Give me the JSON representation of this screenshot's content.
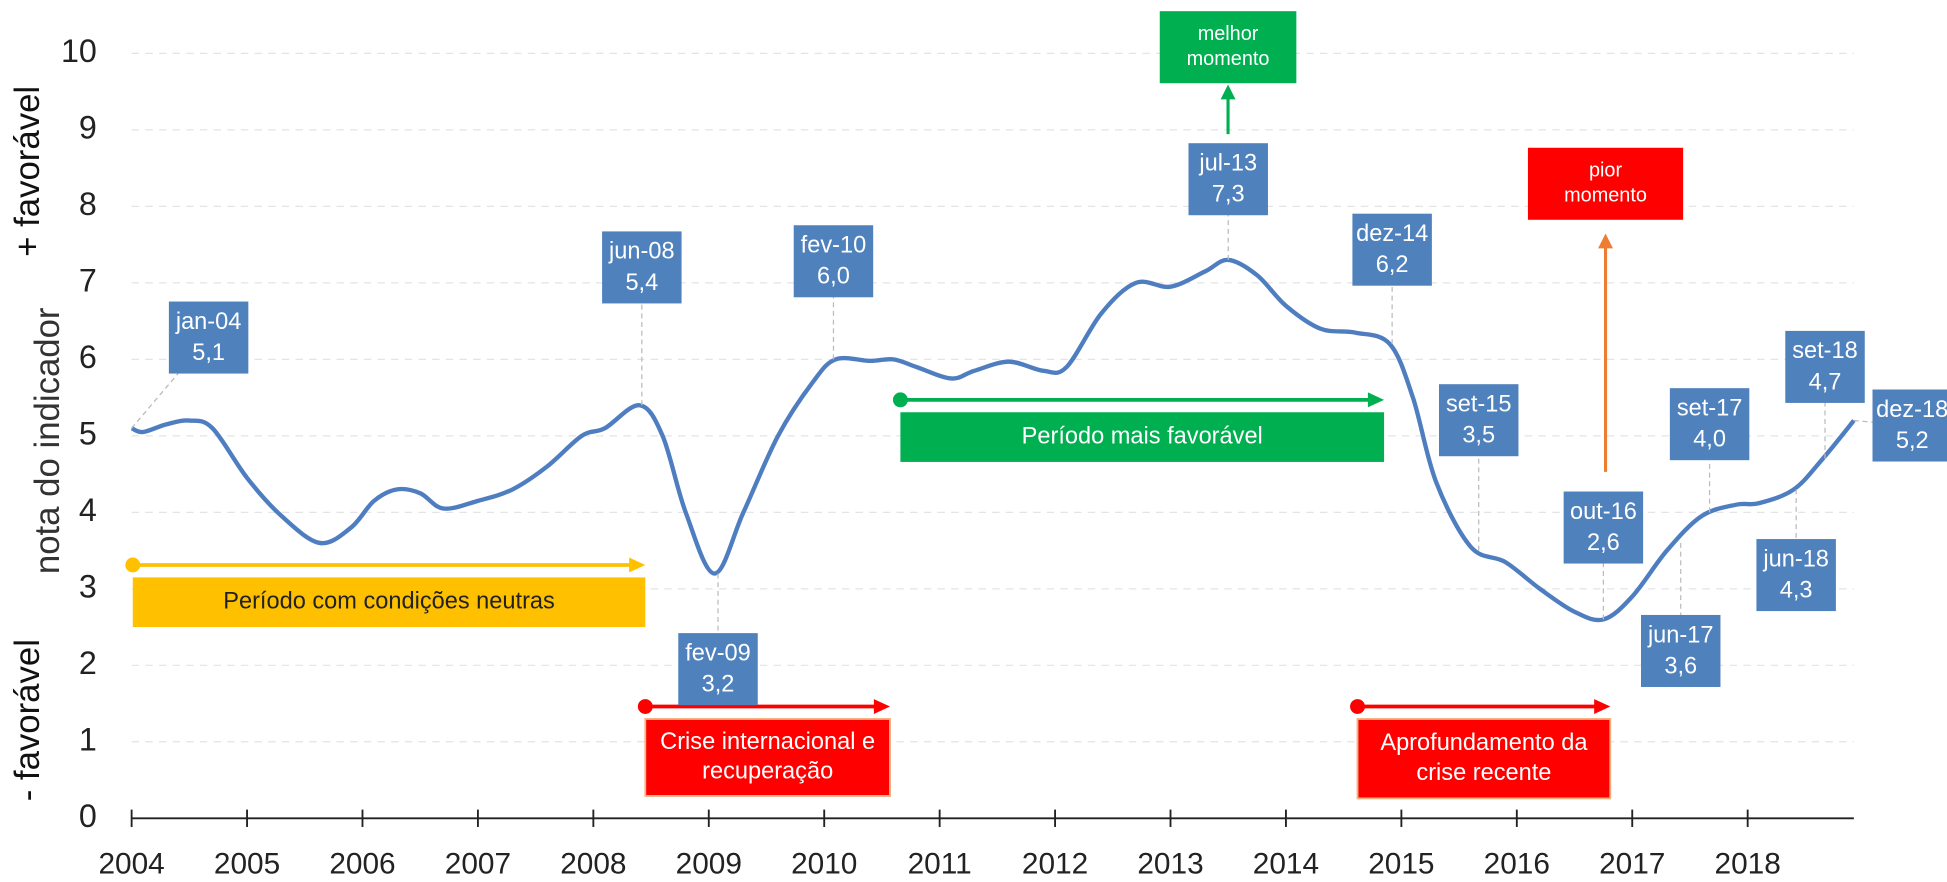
{
  "chart_data": {
    "type": "line",
    "ylabel": "nota do indicador",
    "top_label": "+ favorável",
    "bottom_label": "- favorável",
    "x": [
      2004.0,
      2004.1,
      2004.3,
      2004.5,
      2004.7,
      2005.0,
      2005.3,
      2005.63,
      2005.9,
      2006.1,
      2006.3,
      2006.5,
      2006.7,
      2007.0,
      2007.3,
      2007.6,
      2007.9,
      2008.1,
      2008.4,
      2008.6,
      2008.8,
      2009.05,
      2009.3,
      2009.6,
      2009.9,
      2010.1,
      2010.4,
      2010.6,
      2010.8,
      2011.1,
      2011.3,
      2011.6,
      2011.9,
      2012.1,
      2012.4,
      2012.7,
      2013.0,
      2013.3,
      2013.5,
      2013.75,
      2014.0,
      2014.3,
      2014.6,
      2014.9,
      2015.1,
      2015.3,
      2015.6,
      2015.9,
      2016.2,
      2016.5,
      2016.75,
      2017.0,
      2017.3,
      2017.6,
      2017.9,
      2018.1,
      2018.4,
      2018.65,
      2018.92
    ],
    "values": [
      5.1,
      5.05,
      5.15,
      5.2,
      5.1,
      4.45,
      3.95,
      3.6,
      3.8,
      4.15,
      4.3,
      4.25,
      4.05,
      4.15,
      4.3,
      4.6,
      5.0,
      5.1,
      5.4,
      5.0,
      4.0,
      3.2,
      4.0,
      5.0,
      5.7,
      6.0,
      5.98,
      6.0,
      5.9,
      5.75,
      5.85,
      5.97,
      5.85,
      5.9,
      6.6,
      7.0,
      6.95,
      7.15,
      7.3,
      7.1,
      6.7,
      6.4,
      6.35,
      6.2,
      5.5,
      4.4,
      3.55,
      3.35,
      3.0,
      2.7,
      2.6,
      2.9,
      3.5,
      3.95,
      4.1,
      4.12,
      4.3,
      4.7,
      5.2
    ],
    "color": "#4F7EC0",
    "xlim": [
      2004,
      2018.92
    ],
    "xticks": [
      2004,
      2005,
      2006,
      2007,
      2008,
      2009,
      2010,
      2011,
      2012,
      2013,
      2014,
      2015,
      2016,
      2017,
      2018
    ],
    "ylim": [
      0,
      10
    ],
    "yticks": [
      0,
      1,
      2,
      3,
      4,
      5,
      6,
      7,
      8,
      9,
      10
    ],
    "grid": true,
    "callouts": [
      {
        "date": "jan-04",
        "x": 2004.0,
        "value": 5.1,
        "value_label": "5,1"
      },
      {
        "date": "jun-08",
        "x": 2008.42,
        "value": 5.4,
        "value_label": "5,4"
      },
      {
        "date": "fev-09",
        "x": 2009.08,
        "value": 3.2,
        "value_label": "3,2"
      },
      {
        "date": "fev-10",
        "x": 2010.08,
        "value": 6.0,
        "value_label": "6,0"
      },
      {
        "date": "jul-13",
        "x": 2013.5,
        "value": 7.3,
        "value_label": "7,3"
      },
      {
        "date": "dez-14",
        "x": 2014.92,
        "value": 6.2,
        "value_label": "6,2"
      },
      {
        "date": "set-15",
        "x": 2015.67,
        "value": 3.5,
        "value_label": "3,5"
      },
      {
        "date": "out-16",
        "x": 2016.75,
        "value": 2.6,
        "value_label": "2,6"
      },
      {
        "date": "jun-17",
        "x": 2017.42,
        "value": 3.6,
        "value_label": "3,6"
      },
      {
        "date": "set-17",
        "x": 2017.67,
        "value": 4.0,
        "value_label": "4,0"
      },
      {
        "date": "jun-18",
        "x": 2018.42,
        "value": 4.3,
        "value_label": "4,3"
      },
      {
        "date": "set-18",
        "x": 2018.67,
        "value": 4.7,
        "value_label": "4,7"
      },
      {
        "date": "dez-18",
        "x": 2018.92,
        "value": 5.2,
        "value_label": "5,2"
      }
    ],
    "periods": [
      {
        "lines": [
          "Período com condições neutras"
        ],
        "start": 2004.01,
        "end": 2008.45,
        "color": "#FFC000",
        "text_color": "#222222"
      },
      {
        "lines": [
          "Crise internacional e",
          "recuperação"
        ],
        "start": 2008.45,
        "end": 2010.57,
        "color": "#FF0000",
        "text_color": "#FFFFFF"
      },
      {
        "lines": [
          "Período mais favorável"
        ],
        "start": 2010.66,
        "end": 2014.85,
        "color": "#00B050",
        "text_color": "#FFFFFF"
      },
      {
        "lines": [
          "Aprofundamento da",
          "crise recente"
        ],
        "start": 2014.62,
        "end": 2016.81,
        "color": "#FF0000",
        "text_color": "#FFFFFF"
      }
    ],
    "highlights": [
      {
        "lines": [
          "melhor",
          "momento"
        ],
        "color": "#00B050",
        "arrow_color": "#00B050"
      },
      {
        "lines": [
          "pior",
          "momento"
        ],
        "color": "#FF0000",
        "arrow_color": "#ED7D31"
      }
    ]
  }
}
